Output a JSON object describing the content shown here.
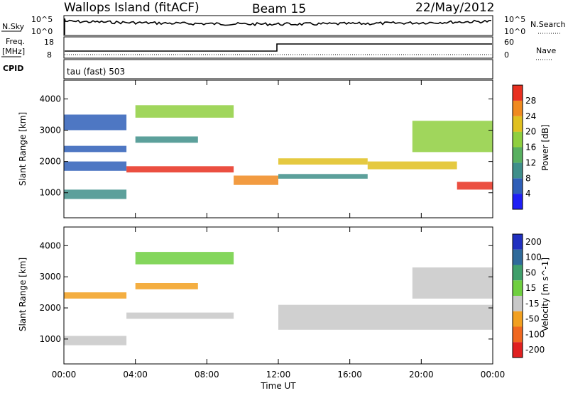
{
  "header": {
    "station": "Wallops Island (fitACF)",
    "beam": "Beam 15",
    "date": "22/May/2012"
  },
  "meta_panels": {
    "nsky_label": "N.Sky",
    "nsearch_label": "N.Search",
    "nsky_ticks": [
      "10^5",
      "10^0"
    ],
    "nsearch_ticks": [
      "10^5",
      "10^0"
    ],
    "freq_label_line1": "Freq.",
    "freq_label_line2": "[MHz]",
    "freq_ticks": [
      "18",
      "8"
    ],
    "nave_label": "Nave",
    "nave_ticks": [
      "60",
      "0"
    ],
    "cpid_label": "CPID",
    "cpid_value": "tau (fast) 503"
  },
  "time_axis": {
    "label": "Time UT",
    "ticks": [
      "00:00",
      "04:00",
      "08:00",
      "12:00",
      "16:00",
      "20:00",
      "00:00"
    ]
  },
  "chart_data": [
    {
      "type": "heatmap",
      "name": "power",
      "ylabel": "Slant Range [km]",
      "yticks": [
        1000,
        2000,
        3000,
        4000
      ],
      "ylim": [
        200,
        4600
      ],
      "xlim_hours": [
        0,
        24
      ],
      "colorbar": {
        "label": "Power [dB]",
        "ticks": [
          "4",
          "8",
          "12",
          "16",
          "20",
          "24",
          "28"
        ],
        "colors": [
          "#1f1ff5",
          "#2f5fb8",
          "#3f8f8a",
          "#58b060",
          "#8fcf3f",
          "#e0c020",
          "#f08a20",
          "#e83020"
        ]
      },
      "bands": [
        {
          "t": [
            0,
            3.5
          ],
          "range": [
            800,
            1100
          ],
          "level": 8
        },
        {
          "t": [
            0,
            3.5
          ],
          "range": [
            1700,
            2000
          ],
          "level": 6
        },
        {
          "t": [
            0,
            3.5
          ],
          "range": [
            2300,
            2500
          ],
          "level": 6
        },
        {
          "t": [
            0,
            3.5
          ],
          "range": [
            3000,
            3500
          ],
          "level": 4
        },
        {
          "t": [
            3.5,
            9.5
          ],
          "range": [
            1650,
            1850
          ],
          "level": 28
        },
        {
          "t": [
            4,
            9.5
          ],
          "range": [
            3400,
            3800
          ],
          "level": 18
        },
        {
          "t": [
            4,
            7.5
          ],
          "range": [
            2600,
            2800
          ],
          "level": 10
        },
        {
          "t": [
            9.5,
            12
          ],
          "range": [
            1250,
            1550
          ],
          "level": 24
        },
        {
          "t": [
            12,
            17
          ],
          "range": [
            1900,
            2100
          ],
          "level": 22
        },
        {
          "t": [
            12,
            17
          ],
          "range": [
            1450,
            1600
          ],
          "level": 8
        },
        {
          "t": [
            17,
            22
          ],
          "range": [
            1750,
            2000
          ],
          "level": 20
        },
        {
          "t": [
            22,
            24
          ],
          "range": [
            1100,
            1350
          ],
          "level": 28
        },
        {
          "t": [
            19.5,
            24
          ],
          "range": [
            2300,
            3300
          ],
          "level": 16
        }
      ]
    },
    {
      "type": "heatmap",
      "name": "velocity",
      "ylabel": "Slant Range [km]",
      "yticks": [
        1000,
        2000,
        3000,
        4000
      ],
      "ylim": [
        200,
        4600
      ],
      "xlim_hours": [
        0,
        24
      ],
      "colorbar": {
        "label": "Velocity [m s^-1]",
        "ticks": [
          "200",
          "100",
          "50",
          "15",
          "-15",
          "-50",
          "-100",
          "-200"
        ],
        "colors": [
          "#2030c0",
          "#2f6a9a",
          "#3f9f6a",
          "#6fcf3f",
          "#c8c8c8",
          "#f2a020",
          "#f06820",
          "#e02020"
        ]
      },
      "bands": [
        {
          "t": [
            0,
            3.5
          ],
          "range": [
            800,
            1100
          ],
          "level": 0
        },
        {
          "t": [
            0,
            3.5
          ],
          "range": [
            2300,
            2500
          ],
          "level": -40
        },
        {
          "t": [
            3.5,
            9.5
          ],
          "range": [
            1650,
            1850
          ],
          "level": 0
        },
        {
          "t": [
            4,
            9.5
          ],
          "range": [
            3400,
            3800
          ],
          "level": 40
        },
        {
          "t": [
            4,
            7.5
          ],
          "range": [
            2600,
            2800
          ],
          "level": -40
        },
        {
          "t": [
            12,
            24
          ],
          "range": [
            1300,
            2100
          ],
          "level": 0
        },
        {
          "t": [
            19.5,
            24
          ],
          "range": [
            2300,
            3300
          ],
          "level": 0
        }
      ]
    }
  ]
}
